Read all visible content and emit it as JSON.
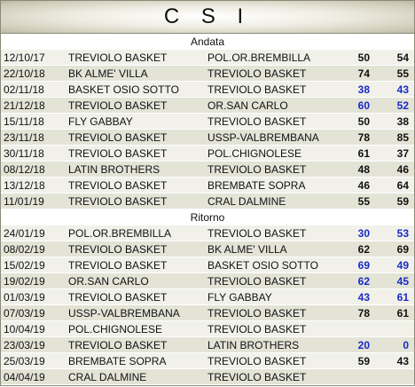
{
  "title": "C S I",
  "sections": [
    {
      "label": "Andata",
      "rows": [
        {
          "date": "12/10/17",
          "home": "TREVIOLO BASKET",
          "away": "POL.OR.BREMBILLA",
          "hs": "50",
          "as": "54",
          "blue": false
        },
        {
          "date": "22/10/18",
          "home": "BK ALME' VILLA",
          "away": "TREVIOLO BASKET",
          "hs": "74",
          "as": "55",
          "blue": false
        },
        {
          "date": "02/11/18",
          "home": "BASKET OSIO SOTTO",
          "away": "TREVIOLO BASKET",
          "hs": "38",
          "as": "43",
          "blue": true
        },
        {
          "date": "21/12/18",
          "home": "TREVIOLO BASKET",
          "away": "OR.SAN CARLO",
          "hs": "60",
          "as": "52",
          "blue": true
        },
        {
          "date": "15/11/18",
          "home": "FLY GABBAY",
          "away": "TREVIOLO BASKET",
          "hs": "50",
          "as": "38",
          "blue": false
        },
        {
          "date": "23/11/18",
          "home": "TREVIOLO BASKET",
          "away": "USSP-VALBREMBANA",
          "hs": "78",
          "as": "85",
          "blue": false
        },
        {
          "date": "30/11/18",
          "home": "TREVIOLO BASKET",
          "away": "POL.CHIGNOLESE",
          "hs": "61",
          "as": "37",
          "blue": false
        },
        {
          "date": "08/12/18",
          "home": "LATIN BROTHERS",
          "away": "TREVIOLO BASKET",
          "hs": "48",
          "as": "46",
          "blue": false
        },
        {
          "date": "13/12/18",
          "home": "TREVIOLO BASKET",
          "away": "BREMBATE SOPRA",
          "hs": "46",
          "as": "64",
          "blue": false
        },
        {
          "date": "11/01/19",
          "home": "TREVIOLO BASKET",
          "away": "CRAL DALMINE",
          "hs": "55",
          "as": "59",
          "blue": false
        }
      ]
    },
    {
      "label": "Ritorno",
      "rows": [
        {
          "date": "24/01/19",
          "home": "POL.OR.BREMBILLA",
          "away": "TREVIOLO BASKET",
          "hs": "30",
          "as": "53",
          "blue": true
        },
        {
          "date": "08/02/19",
          "home": "TREVIOLO BASKET",
          "away": "BK ALME' VILLA",
          "hs": "62",
          "as": "69",
          "blue": false
        },
        {
          "date": "15/02/19",
          "home": "TREVIOLO BASKET",
          "away": "BASKET OSIO SOTTO",
          "hs": "69",
          "as": "49",
          "blue": true
        },
        {
          "date": "19/02/19",
          "home": "OR.SAN CARLO",
          "away": "TREVIOLO BASKET",
          "hs": "62",
          "as": "45",
          "blue": true
        },
        {
          "date": "01/03/19",
          "home": "TREVIOLO BASKET",
          "away": "FLY GABBAY",
          "hs": "43",
          "as": "61",
          "blue": true
        },
        {
          "date": "07/03/19",
          "home": "USSP-VALBREMBANA",
          "away": "TREVIOLO BASKET",
          "hs": "78",
          "as": "61",
          "blue": false
        },
        {
          "date": "10/04/19",
          "home": "POL.CHIGNOLESE",
          "away": "TREVIOLO BASKET",
          "hs": "",
          "as": "",
          "blue": false
        },
        {
          "date": "23/03/19",
          "home": "TREVIOLO BASKET",
          "away": "LATIN BROTHERS",
          "hs": "20",
          "as": "0",
          "blue": true
        },
        {
          "date": "25/03/19",
          "home": "BREMBATE SOPRA",
          "away": "TREVIOLO BASKET",
          "hs": "59",
          "as": "43",
          "blue": false
        },
        {
          "date": "04/04/19",
          "home": "CRAL DALMINE",
          "away": "TREVIOLO BASKET",
          "hs": "",
          "as": "",
          "blue": false
        }
      ]
    }
  ],
  "colors": {
    "header_gold": "#cfcbb8",
    "row_light": "#f1f1ea",
    "row_dark": "#e3e3d6",
    "score_blue": "#1b29c4"
  }
}
